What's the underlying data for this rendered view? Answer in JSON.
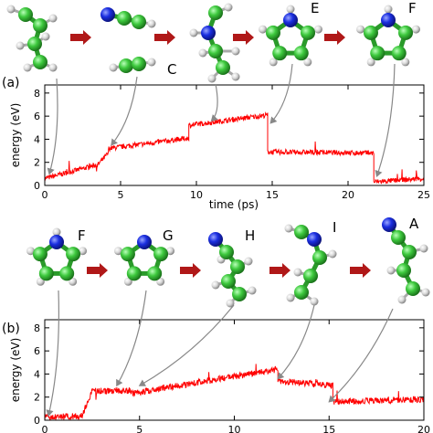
{
  "figure": {
    "structure_labels_top": [
      "C",
      "E",
      "F"
    ],
    "structure_labels_bottom": [
      "F",
      "G",
      "H",
      "I",
      "A"
    ]
  },
  "colors": {
    "carbon": "#3ec93e",
    "nitrogen": "#1a2ee0",
    "hydrogen": "#d8d8d8",
    "arrow": "#b01818",
    "trace": "#ff0000",
    "pointer": "#888888"
  },
  "chart_data": [
    {
      "type": "line",
      "panel_label": "(a)",
      "xlabel": "time (ps)",
      "ylabel": "energy (eV)",
      "xlim": [
        0,
        25
      ],
      "ylim": [
        0,
        8.7
      ],
      "xticks": [
        0,
        5,
        10,
        15,
        20,
        25
      ],
      "yticks": [
        0,
        2,
        4,
        6,
        8
      ],
      "grid": false,
      "segments": [
        {
          "x": [
            0,
            3.5
          ],
          "y": [
            0.6,
            1.8
          ]
        },
        {
          "x": [
            3.5,
            4.2
          ],
          "y": [
            1.8,
            2.8
          ]
        },
        {
          "x": [
            4.2,
            9.5
          ],
          "y": [
            3.2,
            4.1
          ]
        },
        {
          "x": [
            9.5,
            14.7
          ],
          "y": [
            5.2,
            6.1
          ]
        },
        {
          "x": [
            14.7,
            21.7
          ],
          "y": [
            2.9,
            2.8
          ]
        },
        {
          "x": [
            21.7,
            25
          ],
          "y": [
            0.3,
            0.6
          ]
        }
      ],
      "noise": 0.22,
      "pointers": [
        {
          "from_structure": "D",
          "to_x": 0.3,
          "to_y": 1.0
        },
        {
          "from_structure": "C",
          "to_x": 4.4,
          "to_y": 3.5
        },
        {
          "from_structure": "D2",
          "to_x": 11.0,
          "to_y": 5.6
        },
        {
          "from_structure": "E",
          "to_x": 14.9,
          "to_y": 5.4
        },
        {
          "from_structure": "F",
          "to_x": 21.9,
          "to_y": 0.8
        }
      ]
    },
    {
      "type": "line",
      "panel_label": "(b)",
      "xlabel": "",
      "ylabel": "energy (eV)",
      "xlim": [
        0,
        20
      ],
      "ylim": [
        0,
        8.7
      ],
      "xticks": [
        0,
        5,
        10,
        15,
        20
      ],
      "yticks": [
        0,
        2,
        4,
        6,
        8
      ],
      "grid": false,
      "segments": [
        {
          "x": [
            0,
            2.0
          ],
          "y": [
            0.2,
            0.4
          ]
        },
        {
          "x": [
            2.0,
            2.5
          ],
          "y": [
            0.5,
            2.5
          ]
        },
        {
          "x": [
            2.5,
            4.5
          ],
          "y": [
            2.5,
            2.6
          ]
        },
        {
          "x": [
            4.5,
            12.3
          ],
          "y": [
            2.3,
            4.4
          ]
        },
        {
          "x": [
            12.3,
            15.2
          ],
          "y": [
            3.4,
            3.0
          ]
        },
        {
          "x": [
            15.2,
            20
          ],
          "y": [
            1.6,
            1.8
          ]
        }
      ],
      "noise": 0.28,
      "pointers": [
        {
          "from_structure": "F",
          "to_x": 0.2,
          "to_y": 0.4
        },
        {
          "from_structure": "G",
          "to_x": 3.8,
          "to_y": 3.0
        },
        {
          "from_structure": "H",
          "to_x": 5.0,
          "to_y": 3.0
        },
        {
          "from_structure": "I",
          "to_x": 12.3,
          "to_y": 3.6
        },
        {
          "from_structure": "A",
          "to_x": 15.0,
          "to_y": 1.6
        }
      ]
    }
  ]
}
